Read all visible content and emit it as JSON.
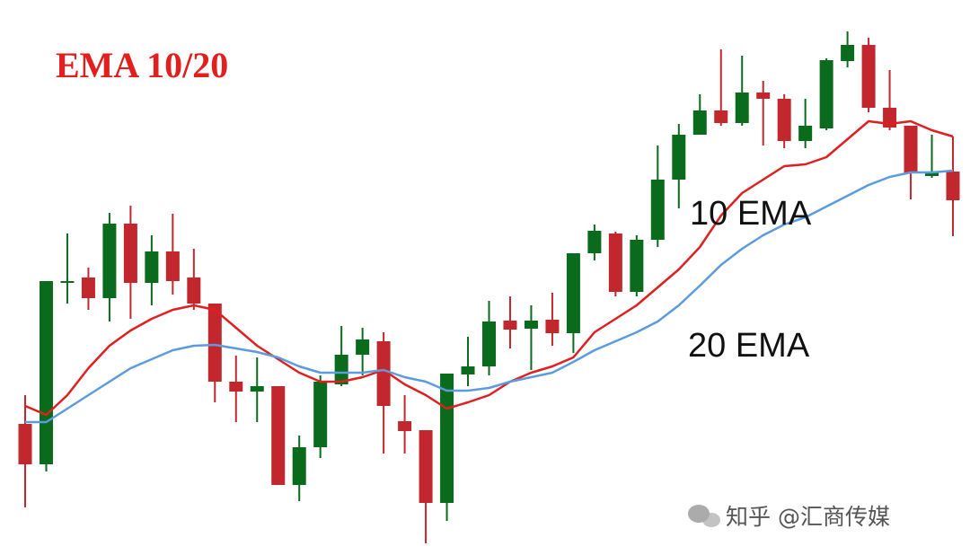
{
  "chart_data": {
    "type": "candlestick",
    "title": "EMA 10/20",
    "watermark": "知乎 @汇商传媒",
    "ylim": [
      0,
      618
    ],
    "up_color": "#0b6b1c",
    "down_color": "#c1272d",
    "open": [
      146,
      101,
      303,
      309,
      286,
      369,
      303,
      338,
      309,
      280,
      193,
      182,
      188,
      78,
      120,
      190,
      223,
      238,
      149,
      139,
      58,
      201,
      210,
      261,
      252,
      262,
      247,
      336,
      358,
      293,
      351,
      418,
      468,
      495,
      481,
      515,
      508,
      461,
      475,
      550,
      568,
      498,
      478,
      422,
      427
    ],
    "close": [
      101,
      305,
      305,
      286,
      369,
      303,
      338,
      305,
      280,
      193,
      182,
      188,
      78,
      120,
      193,
      223,
      240,
      166,
      138,
      58,
      202,
      210,
      260,
      251,
      261,
      247,
      336,
      361,
      293,
      351,
      418,
      468,
      495,
      481,
      515,
      508,
      461,
      478,
      551,
      568,
      498,
      476,
      425,
      426,
      395
    ],
    "high": [
      178,
      305,
      358,
      320,
      381,
      389,
      356,
      380,
      341,
      280,
      222,
      220,
      188,
      133,
      200,
      255,
      253,
      248,
      178,
      139,
      202,
      243,
      283,
      288,
      278,
      292,
      336,
      368,
      360,
      356,
      456,
      480,
      513,
      563,
      556,
      528,
      513,
      508,
      553,
      583,
      576,
      540,
      478,
      468,
      466
    ],
    "low": [
      53,
      93,
      280,
      273,
      260,
      263,
      278,
      290,
      273,
      170,
      148,
      148,
      78,
      60,
      108,
      188,
      200,
      113,
      113,
      13,
      38,
      188,
      200,
      230,
      206,
      233,
      225,
      328,
      288,
      288,
      343,
      386,
      468,
      478,
      478,
      456,
      453,
      453,
      473,
      543,
      493,
      473,
      396,
      420,
      355
    ],
    "series": [
      {
        "name": "10 EMA",
        "color": "#e01f1f",
        "values": [
          166,
          156,
          178,
          208,
          233,
          250,
          263,
          273,
          278,
          273,
          253,
          233,
          218,
          203,
          193,
          193,
          198,
          206,
          190,
          178,
          163,
          170,
          178,
          193,
          203,
          210,
          220,
          248,
          263,
          278,
          298,
          318,
          343,
          378,
          403,
          418,
          433,
          435,
          443,
          463,
          483,
          480,
          483,
          473,
          466
        ]
      },
      {
        "name": "20 EMA",
        "color": "#5b9bde",
        "values": [
          148,
          148,
          163,
          178,
          193,
          208,
          218,
          228,
          233,
          234,
          230,
          226,
          220,
          210,
          203,
          203,
          203,
          206,
          198,
          193,
          183,
          183,
          186,
          193,
          198,
          203,
          215,
          228,
          238,
          248,
          260,
          278,
          300,
          323,
          341,
          356,
          368,
          376,
          388,
          400,
          412,
          421,
          426,
          426,
          428
        ]
      }
    ]
  }
}
